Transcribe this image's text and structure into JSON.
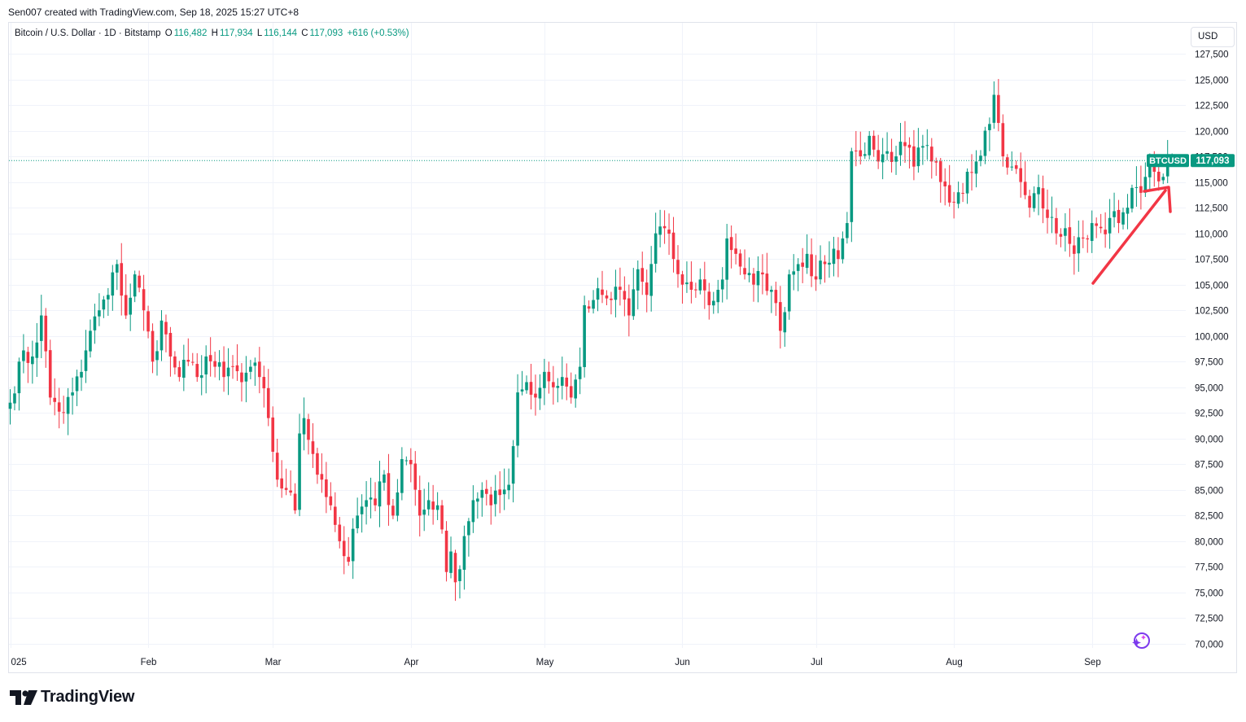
{
  "header": {
    "attribution": "Sen007 created with TradingView.com, Sep 18, 2025 15:27 UTC+8"
  },
  "legend": {
    "symbol": "Bitcoin / U.S. Dollar · 1D · Bitstamp",
    "open_label": "O",
    "open": "116,482",
    "high_label": "H",
    "high": "117,934",
    "low_label": "L",
    "low": "116,144",
    "close_label": "C",
    "close": "117,093",
    "change": "+616 (+0.53%)"
  },
  "currency_button": "USD",
  "price_tag": {
    "ticker": "BTCUSD",
    "price": "117,093"
  },
  "brand": {
    "name": "TradingView"
  },
  "colors": {
    "up": "#089981",
    "down": "#f23645",
    "grid": "#f0f3fa",
    "arrow": "#f23645",
    "spark": "#7c3aed"
  },
  "icons": {
    "logo": "tradingview-logo-icon",
    "assistant": "sparkle-icon"
  },
  "chart_data": {
    "type": "candlestick",
    "title": "Bitcoin / U.S. Dollar · 1D · Bitstamp",
    "last_price": 117093,
    "ylim": [
      69000,
      129000
    ],
    "y_ticks": [
      70000,
      72500,
      75000,
      77500,
      80000,
      82500,
      85000,
      87500,
      90000,
      92500,
      95000,
      97500,
      100000,
      102500,
      105000,
      107500,
      110000,
      112500,
      115000,
      117500,
      120000,
      122500,
      125000,
      127500
    ],
    "y_tick_labels": [
      "70,000",
      "72,500",
      "75,000",
      "77,500",
      "80,000",
      "82,500",
      "85,000",
      "87,500",
      "90,000",
      "92,500",
      "95,000",
      "97,500",
      "100,000",
      "102,500",
      "105,000",
      "107,500",
      "110,000",
      "112,500",
      "115,000",
      "117,500",
      "120,000",
      "122,500",
      "125,000",
      "127,500"
    ],
    "x_labels": [
      {
        "label": "025",
        "day": 0
      },
      {
        "label": "Feb",
        "day": 31
      },
      {
        "label": "Mar",
        "day": 59
      },
      {
        "label": "Apr",
        "day": 90
      },
      {
        "label": "May",
        "day": 120
      },
      {
        "label": "Jun",
        "day": 151
      },
      {
        "label": "Jul",
        "day": 181
      },
      {
        "label": "Aug",
        "day": 212
      },
      {
        "label": "Sep",
        "day": 243
      }
    ],
    "series_anchors_close": [
      [
        0,
        93500
      ],
      [
        2,
        97500
      ],
      [
        5,
        98000
      ],
      [
        7,
        102000
      ],
      [
        9,
        94000
      ],
      [
        12,
        92500
      ],
      [
        14,
        94500
      ],
      [
        16,
        96500
      ],
      [
        18,
        100500
      ],
      [
        20,
        102500
      ],
      [
        22,
        104000
      ],
      [
        24,
        107000
      ],
      [
        26,
        102000
      ],
      [
        28,
        106000
      ],
      [
        30,
        102500
      ],
      [
        32,
        97500
      ],
      [
        34,
        101500
      ],
      [
        36,
        98000
      ],
      [
        38,
        96000
      ],
      [
        40,
        97500
      ],
      [
        42,
        96000
      ],
      [
        44,
        98000
      ],
      [
        46,
        97000
      ],
      [
        48,
        96000
      ],
      [
        50,
        97000
      ],
      [
        52,
        95500
      ],
      [
        54,
        97000
      ],
      [
        56,
        96000
      ],
      [
        58,
        92000
      ],
      [
        60,
        86000
      ],
      [
        62,
        85000
      ],
      [
        64,
        83000
      ],
      [
        65,
        90500
      ],
      [
        66,
        92000
      ],
      [
        68,
        88500
      ],
      [
        70,
        86000
      ],
      [
        72,
        83500
      ],
      [
        74,
        80000
      ],
      [
        76,
        78000
      ],
      [
        78,
        82500
      ],
      [
        80,
        84000
      ],
      [
        82,
        83500
      ],
      [
        84,
        86500
      ],
      [
        86,
        82500
      ],
      [
        88,
        88000
      ],
      [
        90,
        87500
      ],
      [
        92,
        82500
      ],
      [
        94,
        84000
      ],
      [
        96,
        83500
      ],
      [
        98,
        77000
      ],
      [
        99,
        79000
      ],
      [
        100,
        76000
      ],
      [
        102,
        80500
      ],
      [
        104,
        84000
      ],
      [
        106,
        85000
      ],
      [
        108,
        83500
      ],
      [
        110,
        84500
      ],
      [
        112,
        85500
      ],
      [
        114,
        94500
      ],
      [
        116,
        95500
      ],
      [
        118,
        94000
      ],
      [
        120,
        96500
      ],
      [
        122,
        95000
      ],
      [
        124,
        96000
      ],
      [
        126,
        94000
      ],
      [
        128,
        97000
      ],
      [
        129,
        103000
      ],
      [
        131,
        103500
      ],
      [
        133,
        104000
      ],
      [
        135,
        103500
      ],
      [
        137,
        104500
      ],
      [
        139,
        102000
      ],
      [
        141,
        106500
      ],
      [
        143,
        104000
      ],
      [
        145,
        110000
      ],
      [
        147,
        110500
      ],
      [
        149,
        107500
      ],
      [
        151,
        105000
      ],
      [
        153,
        104500
      ],
      [
        155,
        105500
      ],
      [
        157,
        103000
      ],
      [
        159,
        104500
      ],
      [
        160,
        105500
      ],
      [
        161,
        109500
      ],
      [
        163,
        108000
      ],
      [
        165,
        106000
      ],
      [
        167,
        105000
      ],
      [
        169,
        106000
      ],
      [
        171,
        104500
      ],
      [
        173,
        100500
      ],
      [
        175,
        106000
      ],
      [
        177,
        107000
      ],
      [
        179,
        108000
      ],
      [
        181,
        105500
      ],
      [
        183,
        107000
      ],
      [
        185,
        108500
      ],
      [
        186,
        107500
      ],
      [
        187,
        109500
      ],
      [
        188,
        111000
      ],
      [
        189,
        118000
      ],
      [
        191,
        117500
      ],
      [
        193,
        119500
      ],
      [
        195,
        117000
      ],
      [
        197,
        118000
      ],
      [
        199,
        117500
      ],
      [
        201,
        118500
      ],
      [
        203,
        116500
      ],
      [
        205,
        118500
      ],
      [
        207,
        117000
      ],
      [
        209,
        115000
      ],
      [
        211,
        113000
      ],
      [
        213,
        114000
      ],
      [
        215,
        116000
      ],
      [
        217,
        117000
      ],
      [
        219,
        120000
      ],
      [
        221,
        123500
      ],
      [
        223,
        117500
      ],
      [
        225,
        116500
      ],
      [
        227,
        115000
      ],
      [
        229,
        112500
      ],
      [
        231,
        114500
      ],
      [
        233,
        111500
      ],
      [
        235,
        110000
      ],
      [
        237,
        110500
      ],
      [
        239,
        108000
      ],
      [
        241,
        109500
      ],
      [
        243,
        111000
      ],
      [
        245,
        110500
      ],
      [
        247,
        111500
      ],
      [
        249,
        111000
      ],
      [
        251,
        112500
      ],
      [
        253,
        114500
      ],
      [
        255,
        115500
      ],
      [
        257,
        116000
      ],
      [
        259,
        115500
      ],
      [
        261,
        116500
      ]
    ]
  },
  "annotation": {
    "type": "arrow",
    "direction": "up-right"
  }
}
